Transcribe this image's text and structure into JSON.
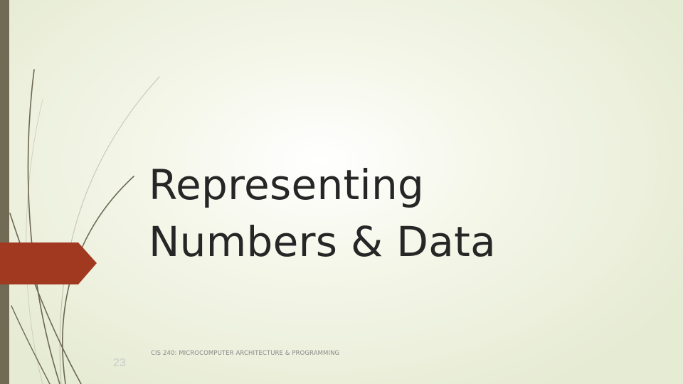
{
  "slide": {
    "title_lines": [
      "Representing",
      "Numbers & Data"
    ],
    "footer": "CIS 240: MICROCOMPUTER ARCHITECTURE & PROGRAMMING",
    "slide_number": "23"
  },
  "colors": {
    "left_bar": "#716b55",
    "arrow_marker": "#a0391f",
    "title_text": "#262626",
    "curve_lines": "#6b6752"
  },
  "icons": {
    "arrow_marker": "pentagon-arrow-shape"
  }
}
